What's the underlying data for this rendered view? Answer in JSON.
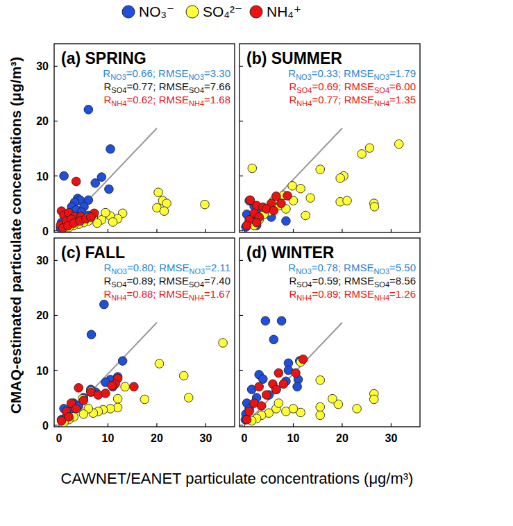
{
  "chart_data": [
    {
      "type": "scatter",
      "title": "(a) SPRING",
      "legend": "top",
      "tick_labels": "y",
      "x_label": "CAWNET/EANET particulate concentrations (μg/m³)",
      "y_label": "CMAQ-estimated particulate concentrations (μg/m³)",
      "xlim": [
        -1,
        35.9
      ],
      "ylim": [
        -0.3,
        34.1
      ],
      "xticks": [
        0,
        10,
        20,
        30
      ],
      "yticks": [
        0,
        10,
        20,
        30
      ],
      "annotations": [
        {
          "text": [
            "R",
            "NO3",
            "=0.66; RMSE",
            "NO3",
            "=3.30"
          ],
          "color": "#2a86d0"
        },
        {
          "text": [
            "R",
            "SO4",
            "=0.77; RMSE",
            "SO4",
            "=7.66"
          ],
          "color": "#111111"
        },
        {
          "text": [
            "R",
            "NH4",
            "=0.62; RMSE",
            "NH4",
            "=1.68"
          ],
          "color": "#e0201b"
        }
      ],
      "series": [
        {
          "type": "line",
          "color": "#999999",
          "x": [
            0,
            20
          ],
          "values": [
            0,
            18.7
          ]
        },
        {
          "name": "NO₃⁻",
          "color": "#1f4fe0",
          "x": [
            6.0,
            1.0,
            10.5,
            8.7,
            10.2,
            7.4,
            3.8,
            4.3,
            3.2,
            6.0,
            2.6,
            5.1,
            3.5,
            2.0,
            4.6,
            1.2,
            0.5,
            0.3,
            1.5,
            2.8,
            0.8,
            4.0,
            6.0
          ],
          "values": [
            22.1,
            10.0,
            14.9,
            9.8,
            7.6,
            8.7,
            5.9,
            5.6,
            5.2,
            5.6,
            4.4,
            4.4,
            3.8,
            3.0,
            3.4,
            2.5,
            1.5,
            0.5,
            1.2,
            2.0,
            0.8,
            2.5,
            2.8
          ]
        },
        {
          "name": "SO₄²⁻",
          "color": "#ffff33",
          "x": [
            20.3,
            21.2,
            22.0,
            20.0,
            21.5,
            29.8,
            13.0,
            12.0,
            10.5,
            8.7,
            7.0,
            6.0,
            5.0,
            4.0,
            3.0,
            2.0,
            9.5,
            11.0,
            7.8,
            5.5
          ],
          "values": [
            7.0,
            5.5,
            5.0,
            4.2,
            3.6,
            4.8,
            3.2,
            2.2,
            2.7,
            2.0,
            2.5,
            1.8,
            1.5,
            1.2,
            1.0,
            0.6,
            3.3,
            1.6,
            1.4,
            2.4
          ]
        },
        {
          "name": "NH₄⁺",
          "color": "#ee1111",
          "x": [
            3.5,
            0.5,
            1.0,
            2.0,
            3.1,
            7.2,
            4.5,
            0.3,
            1.5,
            2.5,
            0.8,
            1.8,
            3.0,
            4.3,
            5.5,
            6.5
          ],
          "values": [
            9.0,
            3.6,
            2.8,
            3.3,
            2.6,
            3.2,
            2.6,
            1.0,
            1.8,
            2.1,
            0.5,
            0.9,
            1.4,
            1.8,
            2.2,
            2.5
          ]
        }
      ]
    },
    {
      "type": "scatter",
      "title": "(b) SUMMER",
      "tick_labels": false,
      "xlim": [
        -1,
        35.9
      ],
      "ylim": [
        -0.3,
        34.1
      ],
      "xticks": [
        0,
        10,
        20,
        30
      ],
      "yticks": [
        0,
        10,
        20,
        30
      ],
      "annotations": [
        {
          "text": [
            "R",
            "NO3",
            "=0.33; RMSE",
            "NO3",
            "=1.79"
          ],
          "color": "#2a86d0"
        },
        {
          "text": [
            "R",
            "SO4",
            "=0.69; RMSE",
            "SO4",
            "=6.00"
          ],
          "color": "#e0201b"
        },
        {
          "text": [
            "R",
            "NH4",
            "=0.77; RMSE",
            "NH4",
            "=1.35"
          ],
          "color": "#e0201b"
        }
      ],
      "series": [
        {
          "type": "line",
          "color": "#999999",
          "x": [
            0,
            20
          ],
          "values": [
            0,
            18.7
          ]
        },
        {
          "color": "#1f4fe0",
          "x": [
            1.0,
            2.0,
            0.5,
            1.5,
            3.0,
            8.5,
            0.3,
            0.8,
            2.5,
            5.5,
            6.0
          ],
          "values": [
            5.5,
            4.5,
            3.0,
            2.0,
            3.0,
            1.8,
            0.7,
            1.2,
            1.0,
            2.5,
            4.4
          ]
        },
        {
          "color": "#ffff33",
          "x": [
            31.6,
            25.6,
            24.0,
            20.3,
            19.6,
            1.6,
            11.5,
            9.8,
            8.0,
            7.0,
            12.5,
            19.6,
            21.0,
            26.5,
            26.6,
            5.0,
            6.0,
            4.0,
            3.0,
            2.0,
            8.5,
            10.0,
            13.5,
            15.5
          ],
          "values": [
            15.8,
            15.1,
            14.0,
            10.0,
            9.6,
            11.4,
            7.7,
            8.2,
            6.5,
            4.6,
            2.8,
            5.3,
            5.5,
            5.0,
            4.4,
            3.5,
            5.5,
            3.0,
            2.0,
            1.0,
            4.0,
            5.5,
            6.0,
            11.2
          ]
        },
        {
          "color": "#ee1111",
          "x": [
            1.2,
            2.5,
            3.8,
            6.5,
            8.8,
            5.5,
            4.5,
            2.0,
            3.0,
            1.0,
            0.5,
            6.0,
            7.5,
            2.5
          ],
          "values": [
            5.6,
            4.6,
            4.3,
            6.3,
            6.4,
            5.0,
            4.0,
            3.2,
            2.5,
            2.0,
            1.0,
            3.7,
            5.0,
            1.5
          ]
        }
      ]
    },
    {
      "type": "scatter",
      "title": "(c) FALL",
      "tick_labels": true,
      "xlim": [
        -1,
        35.9
      ],
      "ylim": [
        -0.3,
        34.1
      ],
      "xticks": [
        0,
        10,
        20,
        30
      ],
      "yticks": [
        0,
        10,
        20,
        30
      ],
      "annotations": [
        {
          "text": [
            "R",
            "NO3",
            "=0.80; RMSE",
            "NO3",
            "=2.11"
          ],
          "color": "#2a86d0"
        },
        {
          "text": [
            "R",
            "SO4",
            "=0.89; RMSE",
            "SO4",
            "=7.40"
          ],
          "color": "#111111"
        },
        {
          "text": [
            "R",
            "NH4",
            "=0.88; RMSE",
            "NH4",
            "=1.67"
          ],
          "color": "#e0201b"
        }
      ],
      "series": [
        {
          "type": "line",
          "color": "#999999",
          "x": [
            0,
            20
          ],
          "values": [
            0,
            18.7
          ]
        },
        {
          "color": "#1f4fe0",
          "x": [
            9.2,
            6.6,
            13.0,
            12.0,
            10.5,
            9.5,
            6.5,
            5.0,
            3.0,
            1.0,
            0.5,
            2.0,
            4.0,
            7.5,
            11.0,
            1.5
          ],
          "values": [
            22.0,
            16.5,
            11.7,
            8.8,
            8.3,
            7.8,
            6.5,
            5.0,
            4.0,
            3.0,
            1.0,
            2.5,
            3.5,
            6.0,
            7.0,
            1.5
          ]
        },
        {
          "color": "#ffff33",
          "x": [
            33.5,
            20.5,
            25.5,
            26.5,
            17.5,
            12.0,
            12.0,
            10.5,
            9.0,
            8.0,
            7.0,
            6.0,
            4.8,
            6.5,
            5.0,
            3.0,
            2.0,
            1.0,
            13.5
          ],
          "values": [
            15.0,
            11.2,
            9.0,
            5.0,
            4.7,
            4.8,
            3.2,
            3.0,
            2.8,
            2.5,
            2.2,
            3.0,
            4.8,
            6.2,
            2.0,
            1.5,
            1.0,
            0.5,
            7.0
          ]
        },
        {
          "color": "#ee1111",
          "x": [
            15.3,
            12.0,
            11.5,
            10.8,
            4.0,
            6.5,
            8.0,
            9.5,
            2.5,
            1.5,
            0.5,
            3.5,
            5.0,
            2.0
          ],
          "values": [
            7.0,
            8.5,
            7.5,
            7.2,
            6.8,
            6.0,
            5.5,
            5.8,
            4.0,
            2.5,
            0.8,
            3.0,
            4.5,
            1.5
          ]
        }
      ]
    },
    {
      "type": "scatter",
      "title": "(d) WINTER",
      "tick_labels": "x",
      "xlim": [
        -1,
        35.9
      ],
      "ylim": [
        -0.3,
        34.1
      ],
      "xticks": [
        0,
        10,
        20,
        30
      ],
      "yticks": [
        0,
        10,
        20,
        30
      ],
      "annotations": [
        {
          "text": [
            "R",
            "NO3",
            "=0.78; RMSE",
            "NO3",
            "=5.50"
          ],
          "color": "#2a86d0"
        },
        {
          "text": [
            "R",
            "SO4",
            "=0.59; RMSE",
            "SO4",
            "=8.56"
          ],
          "color": "#111111"
        },
        {
          "text": [
            "R",
            "NH4",
            "=0.89; RMSE",
            "NH4",
            "=1.26"
          ],
          "color": "#e0201b"
        }
      ],
      "series": [
        {
          "type": "line",
          "color": "#999999",
          "x": [
            0,
            20
          ],
          "values": [
            0,
            18.7
          ]
        },
        {
          "color": "#1f4fe0",
          "x": [
            4.3,
            7.6,
            6.0,
            3.0,
            3.8,
            9.0,
            9.0,
            11.3,
            11.0,
            10.8,
            8.5,
            6.5,
            1.5,
            0.5,
            1.0,
            0.3,
            2.5,
            5.0,
            0.2
          ],
          "values": [
            19.0,
            19.0,
            15.6,
            9.2,
            8.4,
            11.3,
            10.0,
            11.7,
            8.3,
            7.0,
            8.0,
            6.5,
            6.5,
            4.0,
            3.0,
            2.0,
            5.0,
            5.5,
            1.0
          ]
        },
        {
          "color": "#ffff33",
          "x": [
            15.5,
            11.5,
            26.5,
            26.5,
            23.0,
            19.2,
            18.0,
            15.5,
            15.5,
            11.5,
            8.5,
            6.5,
            5.0,
            3.5,
            2.5,
            1.5,
            7.0,
            10.0
          ],
          "values": [
            8.2,
            11.5,
            5.7,
            4.7,
            3.0,
            3.8,
            4.8,
            3.3,
            1.8,
            2.3,
            2.5,
            3.0,
            2.2,
            1.8,
            1.2,
            0.8,
            4.0,
            3.0
          ]
        },
        {
          "color": "#ee1111",
          "x": [
            12.0,
            10.5,
            7.0,
            5.8,
            3.0,
            6.5,
            4.5,
            2.0,
            1.0,
            3.5,
            0.5,
            8.0
          ],
          "values": [
            12.0,
            9.5,
            9.5,
            7.5,
            7.0,
            6.5,
            5.5,
            4.0,
            2.5,
            3.5,
            1.0,
            7.5
          ]
        }
      ]
    }
  ]
}
